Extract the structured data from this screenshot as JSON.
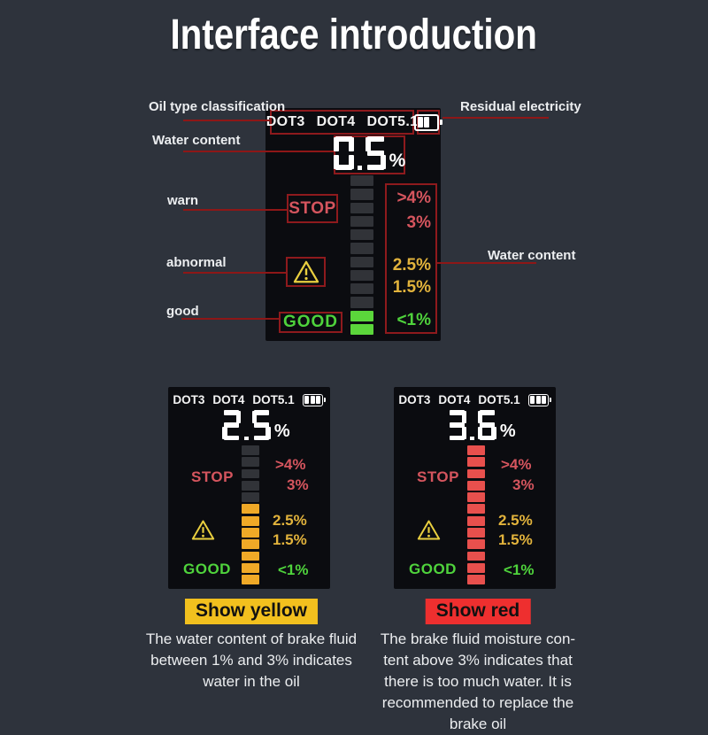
{
  "title": "Interface introduction",
  "colors": {
    "background": "#2e333c",
    "panel": "#0b0c10",
    "outline_red": "#8e1a1d",
    "leader_line": "#8e1717",
    "warn_pink": "#d5555e",
    "amber": "#e2b33c",
    "good_green": "#4fd33c",
    "bar_off": "#313338",
    "bar_green": "#5bd63b",
    "bar_yellow": "#f0a927",
    "bar_red": "#e8504d",
    "caption_yellow": "#f2c01e",
    "caption_red": "#ee2f2f",
    "text_white": "#f2f3f5",
    "triangle_yellow": "#e9cf3f"
  },
  "icons": {
    "battery": "battery-icon",
    "warning": "warning-triangle-icon"
  },
  "annotations": {
    "oil_type": "Oil type classification",
    "residual_electricity": "Residual electricity",
    "water_content_left": "Water content",
    "water_content_right": "Water content",
    "warn": "warn",
    "abnormal": "abnormal",
    "good": "good"
  },
  "displays": {
    "main": {
      "dot_types": [
        "DOT3",
        "DOT4",
        "DOT5.1"
      ],
      "value": "0.5",
      "unit": "%",
      "stop_label": "STOP",
      "good_label": "GOOD",
      "scale": [
        ">4%",
        "3%",
        "2.5%",
        "1.5%",
        "<1%"
      ],
      "bars": {
        "total": 12,
        "lit": 2,
        "color": "#5bd63b"
      }
    },
    "yellow": {
      "dot_types": [
        "DOT3",
        "DOT4",
        "DOT5.1"
      ],
      "value": "2.5",
      "unit": "%",
      "stop_label": "STOP",
      "good_label": "GOOD",
      "scale": [
        ">4%",
        "3%",
        "2.5%",
        "1.5%",
        "<1%"
      ],
      "bars": {
        "total": 12,
        "lit": 7,
        "color": "#f0a927"
      },
      "caption": "Show yellow",
      "desc": [
        "The water content of brake fluid",
        "between 1% and 3% indicates",
        "water in the oil"
      ]
    },
    "red": {
      "dot_types": [
        "DOT3",
        "DOT4",
        "DOT5.1"
      ],
      "value": "3.6",
      "unit": "%",
      "stop_label": "STOP",
      "good_label": "GOOD",
      "scale": [
        ">4%",
        "3%",
        "2.5%",
        "1.5%",
        "<1%"
      ],
      "bars": {
        "total": 12,
        "lit": 12,
        "color": "#e8504d"
      },
      "caption": "Show red",
      "desc": [
        "The brake fluid moisture con-",
        "tent above 3% indicates that",
        "there is too much water. It is",
        "recommended to replace the",
        "brake oil"
      ]
    }
  }
}
